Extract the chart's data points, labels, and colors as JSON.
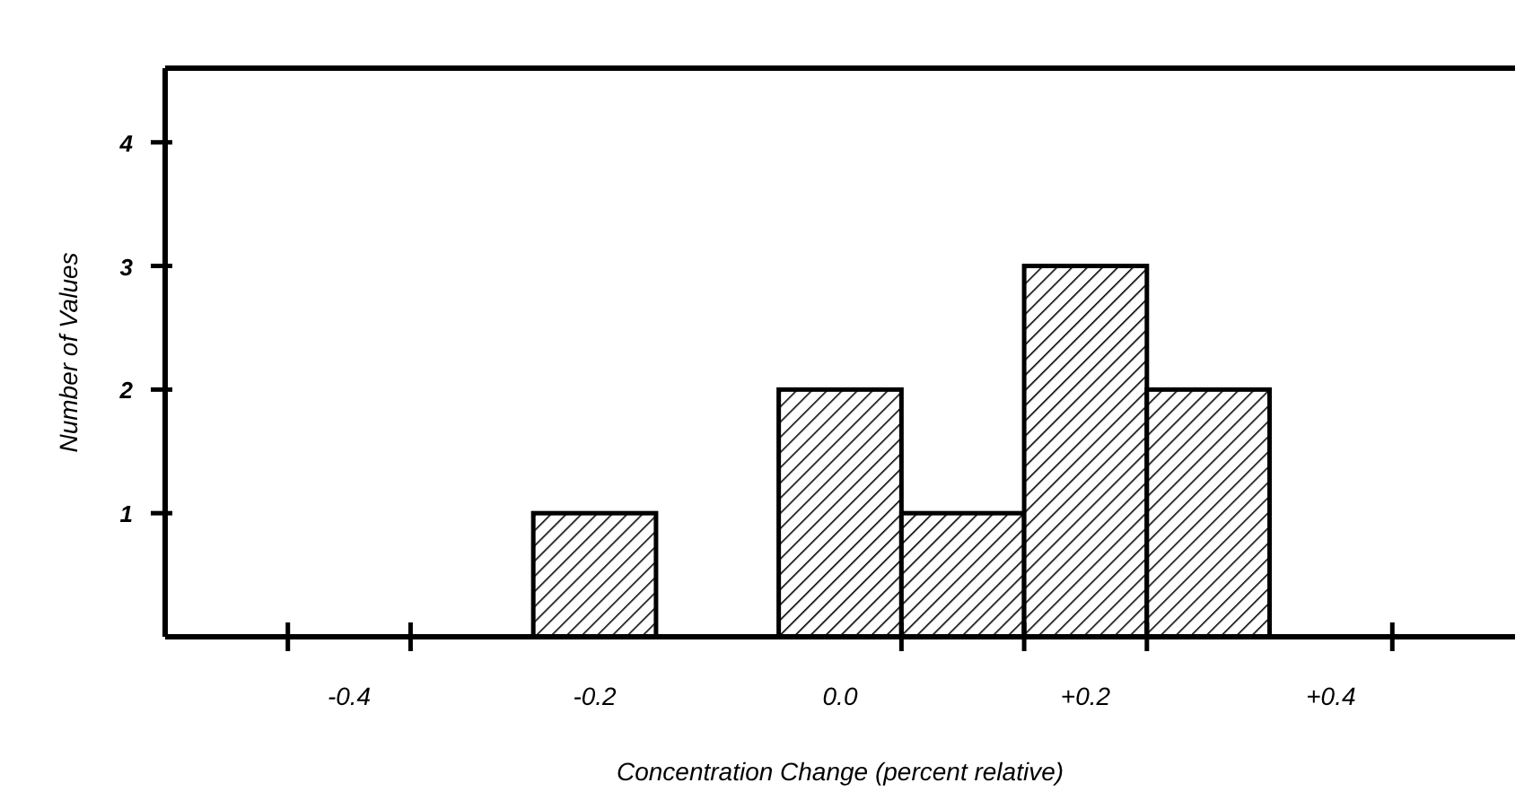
{
  "chart_data": {
    "type": "histogram",
    "xlabel": "Concentration Change (percent relative)",
    "ylabel": "Number of Values",
    "bins": [
      -0.25,
      -0.15,
      -0.05,
      0.05,
      0.15,
      0.25,
      0.35
    ],
    "values": [
      1,
      0,
      2,
      1,
      3,
      2
    ],
    "color": "#000000",
    "xlim": [
      -0.55,
      0.55
    ],
    "xticks": [
      {
        "value": -0.45,
        "label": null
      },
      {
        "value": -0.4,
        "label": "-0.4"
      },
      {
        "value": -0.35,
        "label": null
      },
      {
        "value": -0.2,
        "label": "-0.2"
      },
      {
        "value": 0,
        "label": "0.0"
      },
      {
        "value": 0.05,
        "label": null
      },
      {
        "value": 0.15,
        "label": null
      },
      {
        "value": 0.2,
        "label": "+0.2"
      },
      {
        "value": 0.25,
        "label": null
      },
      {
        "value": 0.4,
        "label": "+0.4"
      },
      {
        "value": 0.45,
        "label": null
      }
    ],
    "ylim": [
      0,
      4.6
    ],
    "yticks": [
      1,
      2,
      3,
      4
    ],
    "grid": false
  }
}
